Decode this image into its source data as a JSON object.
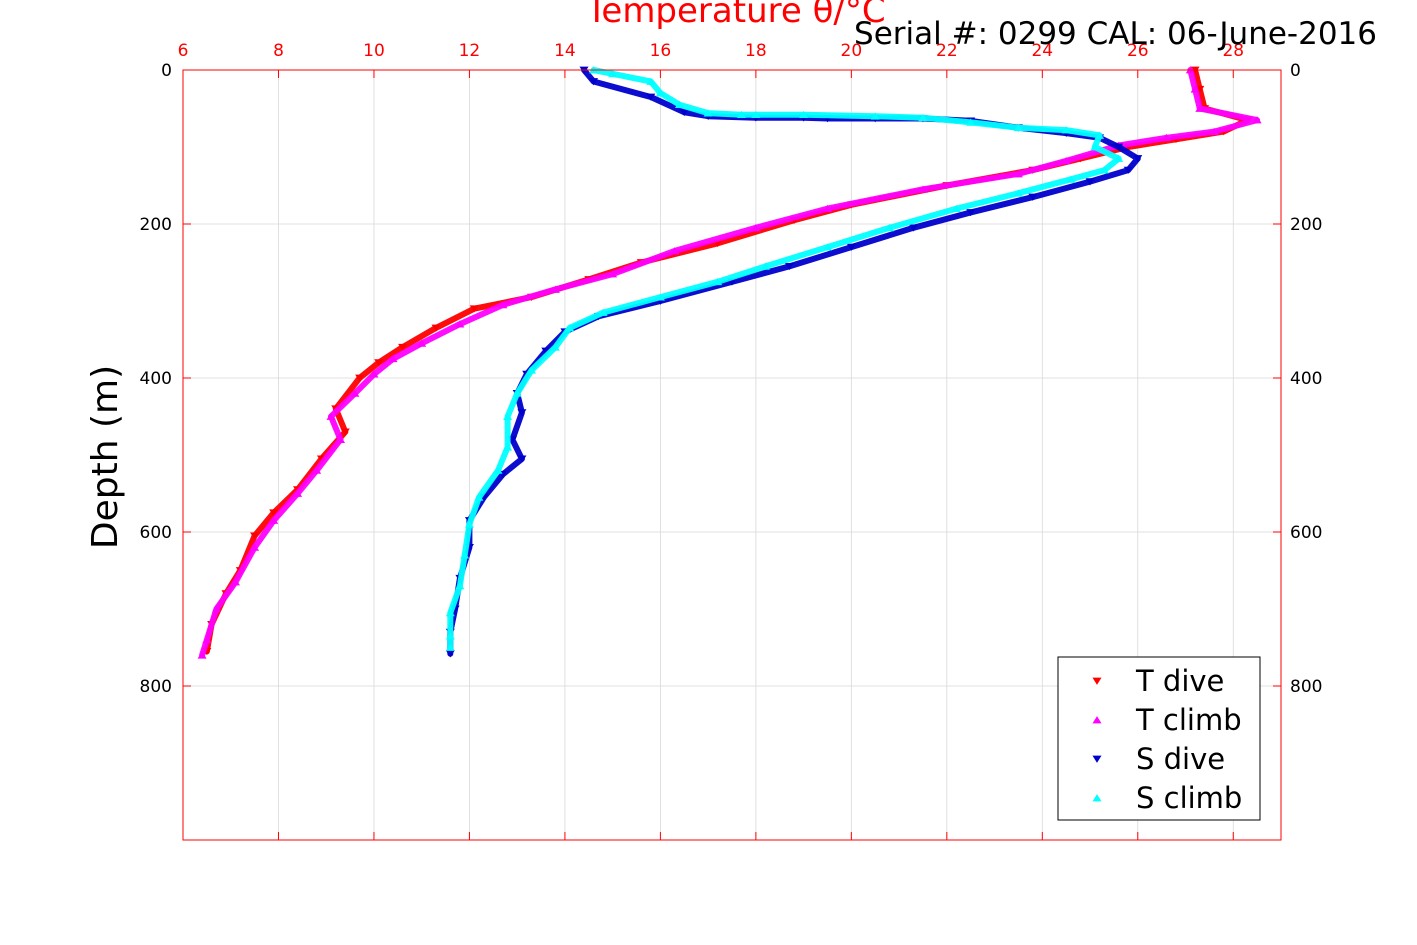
{
  "chart_data": {
    "type": "scatter",
    "title": "Temperature θ/°C",
    "subtitle": "Serial #: 0299 CAL: 06-June-2016",
    "xlabel": "Temperature θ/°C",
    "ylabel": "Depth (m)",
    "xlim": [
      6,
      29
    ],
    "ylim": [
      0,
      1000
    ],
    "y_reversed": true,
    "x_axis_position": "top",
    "x_ticks": [
      6,
      8,
      10,
      12,
      14,
      16,
      18,
      20,
      22,
      24,
      26,
      28
    ],
    "y_ticks": [
      0,
      200,
      400,
      600,
      800
    ],
    "grid": true,
    "legend_position": "bottom-right",
    "colors": {
      "axis": "#ff0000",
      "t_dive": "#ff0000",
      "t_climb": "#ff00ff",
      "s_dive": "#0000cc",
      "s_climb": "#00ffff",
      "grid": "#d8d8d8"
    },
    "series": [
      {
        "name": "T dive",
        "marker": "triangle-down",
        "color": "#ff0000",
        "points": [
          [
            27.2,
            0
          ],
          [
            27.3,
            25
          ],
          [
            27.4,
            50
          ],
          [
            28.3,
            65
          ],
          [
            27.8,
            80
          ],
          [
            26.8,
            90
          ],
          [
            25.8,
            100
          ],
          [
            24.8,
            115
          ],
          [
            23.8,
            130
          ],
          [
            22.0,
            150
          ],
          [
            20.0,
            175
          ],
          [
            18.8,
            195
          ],
          [
            17.2,
            225
          ],
          [
            15.6,
            250
          ],
          [
            14.5,
            272
          ],
          [
            13.3,
            295
          ],
          [
            12.1,
            310
          ],
          [
            11.3,
            335
          ],
          [
            10.6,
            360
          ],
          [
            10.1,
            380
          ],
          [
            9.7,
            400
          ],
          [
            9.2,
            440
          ],
          [
            9.4,
            470
          ],
          [
            8.9,
            505
          ],
          [
            8.4,
            545
          ],
          [
            7.9,
            575
          ],
          [
            7.5,
            605
          ],
          [
            7.2,
            650
          ],
          [
            6.9,
            680
          ],
          [
            6.6,
            720
          ],
          [
            6.5,
            755
          ]
        ]
      },
      {
        "name": "T climb",
        "marker": "triangle-up",
        "color": "#ff00ff",
        "points": [
          [
            27.1,
            0
          ],
          [
            27.2,
            25
          ],
          [
            27.3,
            50
          ],
          [
            28.5,
            65
          ],
          [
            27.6,
            80
          ],
          [
            26.6,
            88
          ],
          [
            25.6,
            98
          ],
          [
            24.5,
            118
          ],
          [
            23.5,
            135
          ],
          [
            21.5,
            155
          ],
          [
            19.5,
            180
          ],
          [
            18.0,
            205
          ],
          [
            16.3,
            235
          ],
          [
            15.0,
            265
          ],
          [
            13.8,
            285
          ],
          [
            12.7,
            305
          ],
          [
            11.8,
            330
          ],
          [
            11.0,
            355
          ],
          [
            10.4,
            375
          ],
          [
            10.0,
            395
          ],
          [
            9.6,
            420
          ],
          [
            9.1,
            450
          ],
          [
            9.3,
            480
          ],
          [
            8.8,
            520
          ],
          [
            8.4,
            550
          ],
          [
            7.9,
            585
          ],
          [
            7.5,
            620
          ],
          [
            7.1,
            665
          ],
          [
            6.7,
            700
          ],
          [
            6.5,
            740
          ],
          [
            6.4,
            760
          ]
        ]
      },
      {
        "name": "S dive",
        "marker": "triangle-down",
        "color": "#0000cc",
        "points": [
          [
            14.4,
            0
          ],
          [
            14.6,
            15
          ],
          [
            15.8,
            35
          ],
          [
            16.5,
            55
          ],
          [
            17.0,
            60
          ],
          [
            18.0,
            62
          ],
          [
            19.0,
            62
          ],
          [
            19.5,
            63
          ],
          [
            20.5,
            63
          ],
          [
            21.5,
            63
          ],
          [
            22.5,
            66
          ],
          [
            23.5,
            75
          ],
          [
            24.5,
            82
          ],
          [
            25.2,
            88
          ],
          [
            25.6,
            100
          ],
          [
            26.0,
            115
          ],
          [
            25.8,
            130
          ],
          [
            25.0,
            145
          ],
          [
            23.8,
            165
          ],
          [
            22.5,
            185
          ],
          [
            21.3,
            205
          ],
          [
            20.0,
            230
          ],
          [
            18.7,
            255
          ],
          [
            17.5,
            275
          ],
          [
            16.0,
            300
          ],
          [
            14.7,
            320
          ],
          [
            14.0,
            340
          ],
          [
            13.6,
            365
          ],
          [
            13.2,
            395
          ],
          [
            13.0,
            420
          ],
          [
            13.1,
            445
          ],
          [
            12.9,
            480
          ],
          [
            13.1,
            505
          ],
          [
            12.7,
            525
          ],
          [
            12.3,
            555
          ],
          [
            12.0,
            585
          ],
          [
            12.0,
            620
          ],
          [
            11.8,
            660
          ],
          [
            11.7,
            700
          ],
          [
            11.6,
            730
          ],
          [
            11.6,
            758
          ]
        ]
      },
      {
        "name": "S climb",
        "marker": "triangle-up",
        "color": "#00ffff",
        "points": [
          [
            14.6,
            0
          ],
          [
            15.0,
            5
          ],
          [
            15.8,
            15
          ],
          [
            16.0,
            30
          ],
          [
            16.4,
            45
          ],
          [
            17.0,
            56
          ],
          [
            17.7,
            58
          ],
          [
            18.0,
            58
          ],
          [
            19.0,
            58
          ],
          [
            20.5,
            60
          ],
          [
            21.5,
            62
          ],
          [
            22.5,
            68
          ],
          [
            23.5,
            75
          ],
          [
            24.5,
            78
          ],
          [
            25.2,
            85
          ],
          [
            25.1,
            100
          ],
          [
            25.6,
            115
          ],
          [
            25.3,
            130
          ],
          [
            24.6,
            142
          ],
          [
            23.5,
            160
          ],
          [
            22.2,
            180
          ],
          [
            20.8,
            205
          ],
          [
            19.5,
            230
          ],
          [
            18.2,
            255
          ],
          [
            17.2,
            275
          ],
          [
            16.0,
            295
          ],
          [
            14.8,
            315
          ],
          [
            14.1,
            335
          ],
          [
            13.8,
            360
          ],
          [
            13.3,
            390
          ],
          [
            13.0,
            420
          ],
          [
            12.8,
            450
          ],
          [
            12.8,
            490
          ],
          [
            12.6,
            520
          ],
          [
            12.2,
            555
          ],
          [
            12.0,
            590
          ],
          [
            11.9,
            630
          ],
          [
            11.8,
            670
          ],
          [
            11.6,
            705
          ],
          [
            11.6,
            735
          ],
          [
            11.6,
            750
          ]
        ]
      }
    ]
  }
}
